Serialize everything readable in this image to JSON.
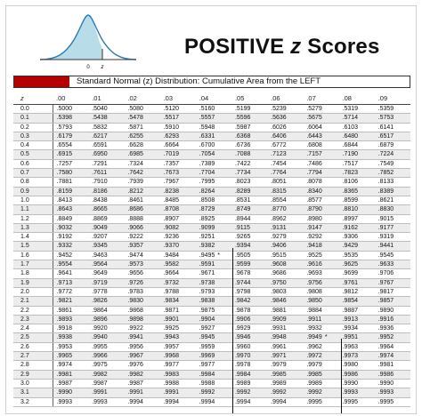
{
  "heading": {
    "title_main": "POSITIVE ",
    "title_z": "z",
    "title_end": " Scores"
  },
  "figure": {
    "zero_label": "0",
    "z_label": "z"
  },
  "table_caption": "Standard Normal (z) Distribution: Cumulative Area from the LEFT",
  "columns": [
    "z",
    ".00",
    ".01",
    ".02",
    ".03",
    ".04",
    ".05",
    ".06",
    ".07",
    ".08",
    ".09"
  ],
  "rows": [
    [
      "0.0",
      ".5000",
      ".5040",
      ".5080",
      ".5120",
      ".5160",
      ".5199",
      ".5239",
      ".5279",
      ".5319",
      ".5359"
    ],
    [
      "0.1",
      ".5398",
      ".5438",
      ".5478",
      ".5517",
      ".5557",
      ".5596",
      ".5636",
      ".5675",
      ".5714",
      ".5753"
    ],
    [
      "0.2",
      ".5793",
      ".5832",
      ".5871",
      ".5910",
      ".5948",
      ".5987",
      ".6026",
      ".6064",
      ".6103",
      ".6141"
    ],
    [
      "0.3",
      ".6179",
      ".6217",
      ".6255",
      ".6293",
      ".6331",
      ".6368",
      ".6406",
      ".6443",
      ".6480",
      ".6517"
    ],
    [
      "0.4",
      ".6554",
      ".6591",
      ".6628",
      ".6664",
      ".6700",
      ".6736",
      ".6772",
      ".6808",
      ".6844",
      ".6879"
    ],
    [
      "0.5",
      ".6915",
      ".6950",
      ".6985",
      ".7019",
      ".7054",
      ".7088",
      ".7123",
      ".7157",
      ".7190",
      ".7224"
    ],
    [
      "0.6",
      ".7257",
      ".7291",
      ".7324",
      ".7357",
      ".7389",
      ".7422",
      ".7454",
      ".7486",
      ".7517",
      ".7549"
    ],
    [
      "0.7",
      ".7580",
      ".7611",
      ".7642",
      ".7673",
      ".7704",
      ".7734",
      ".7764",
      ".7794",
      ".7823",
      ".7852"
    ],
    [
      "0.8",
      ".7881",
      ".7910",
      ".7939",
      ".7967",
      ".7995",
      ".8023",
      ".8051",
      ".8078",
      ".8106",
      ".8133"
    ],
    [
      "0.9",
      ".8159",
      ".8186",
      ".8212",
      ".8238",
      ".8264",
      ".8289",
      ".8315",
      ".8340",
      ".8365",
      ".8389"
    ],
    [
      "1.0",
      ".8413",
      ".8438",
      ".8461",
      ".8485",
      ".8508",
      ".8531",
      ".8554",
      ".8577",
      ".8599",
      ".8621"
    ],
    [
      "1.1",
      ".8643",
      ".8665",
      ".8686",
      ".8708",
      ".8729",
      ".8749",
      ".8770",
      ".8790",
      ".8810",
      ".8830"
    ],
    [
      "1.2",
      ".8849",
      ".8869",
      ".8888",
      ".8907",
      ".8925",
      ".8944",
      ".8962",
      ".8980",
      ".8997",
      ".9015"
    ],
    [
      "1.3",
      ".9032",
      ".9049",
      ".9066",
      ".9082",
      ".9099",
      ".9115",
      ".9131",
      ".9147",
      ".9162",
      ".9177"
    ],
    [
      "1.4",
      ".9192",
      ".9207",
      ".9222",
      ".9236",
      ".9251",
      ".9265",
      ".9279",
      ".9292",
      ".9306",
      ".9319"
    ],
    [
      "1.5",
      ".9332",
      ".9345",
      ".9357",
      ".9370",
      ".9382",
      ".9394",
      ".9406",
      ".9418",
      ".9429",
      ".9441"
    ],
    [
      "1.6",
      ".9452",
      ".9463",
      ".9474",
      ".9484",
      ".9495",
      ".9505",
      ".9515",
      ".9525",
      ".9535",
      ".9545"
    ],
    [
      "1.7",
      ".9554",
      ".9564",
      ".9573",
      ".9582",
      ".9591",
      ".9599",
      ".9608",
      ".9616",
      ".9625",
      ".9633"
    ],
    [
      "1.8",
      ".9641",
      ".9649",
      ".9656",
      ".9664",
      ".9671",
      ".9678",
      ".9686",
      ".9693",
      ".9699",
      ".9706"
    ],
    [
      "1.9",
      ".9713",
      ".9719",
      ".9726",
      ".9732",
      ".9738",
      ".9744",
      ".9750",
      ".9756",
      ".9761",
      ".9767"
    ],
    [
      "2.0",
      ".9772",
      ".9778",
      ".9783",
      ".9788",
      ".9793",
      ".9798",
      ".9803",
      ".9808",
      ".9812",
      ".9817"
    ],
    [
      "2.1",
      ".9821",
      ".9826",
      ".9830",
      ".9834",
      ".9838",
      ".9842",
      ".9846",
      ".9850",
      ".9854",
      ".9857"
    ],
    [
      "2.2",
      ".9861",
      ".9864",
      ".9868",
      ".9871",
      ".9875",
      ".9878",
      ".9881",
      ".9884",
      ".9887",
      ".9890"
    ],
    [
      "2.3",
      ".9893",
      ".9896",
      ".9898",
      ".9901",
      ".9904",
      ".9906",
      ".9909",
      ".9911",
      ".9913",
      ".9916"
    ],
    [
      "2.4",
      ".9918",
      ".9920",
      ".9922",
      ".9925",
      ".9927",
      ".9929",
      ".9931",
      ".9932",
      ".9934",
      ".9936"
    ],
    [
      "2.5",
      ".9938",
      ".9940",
      ".9941",
      ".9943",
      ".9945",
      ".9946",
      ".9948",
      ".9949",
      ".9951",
      ".9952"
    ],
    [
      "2.6",
      ".9953",
      ".9955",
      ".9956",
      ".9957",
      ".9959",
      ".9960",
      ".9961",
      ".9962",
      ".9963",
      ".9964"
    ],
    [
      "2.7",
      ".9965",
      ".9966",
      ".9967",
      ".9968",
      ".9969",
      ".9970",
      ".9971",
      ".9972",
      ".9973",
      ".9974"
    ],
    [
      "2.8",
      ".9974",
      ".9975",
      ".9976",
      ".9977",
      ".9977",
      ".9978",
      ".9979",
      ".9979",
      ".9980",
      ".9981"
    ],
    [
      "2.9",
      ".9981",
      ".9982",
      ".9982",
      ".9983",
      ".9984",
      ".9984",
      ".9985",
      ".9985",
      ".9986",
      ".9986"
    ],
    [
      "3.0",
      ".9987",
      ".9987",
      ".9987",
      ".9988",
      ".9988",
      ".9989",
      ".9989",
      ".9989",
      ".9990",
      ".9990"
    ],
    [
      "3.1",
      ".9990",
      ".9991",
      ".9991",
      ".9991",
      ".9992",
      ".9992",
      ".9992",
      ".9992",
      ".9993",
      ".9993"
    ],
    [
      "3.2",
      ".9993",
      ".9993",
      ".9994",
      ".9994",
      ".9994",
      ".9994",
      ".9994",
      ".9995",
      ".9995",
      ".9995"
    ]
  ],
  "special_marks": {
    "mark_1": "*",
    "mark_2": "*"
  },
  "colors": {
    "accent": "#b30000",
    "shade": "#ececec",
    "curve_fill": "#b8dce8",
    "curve_stroke": "#2a7ab8"
  }
}
